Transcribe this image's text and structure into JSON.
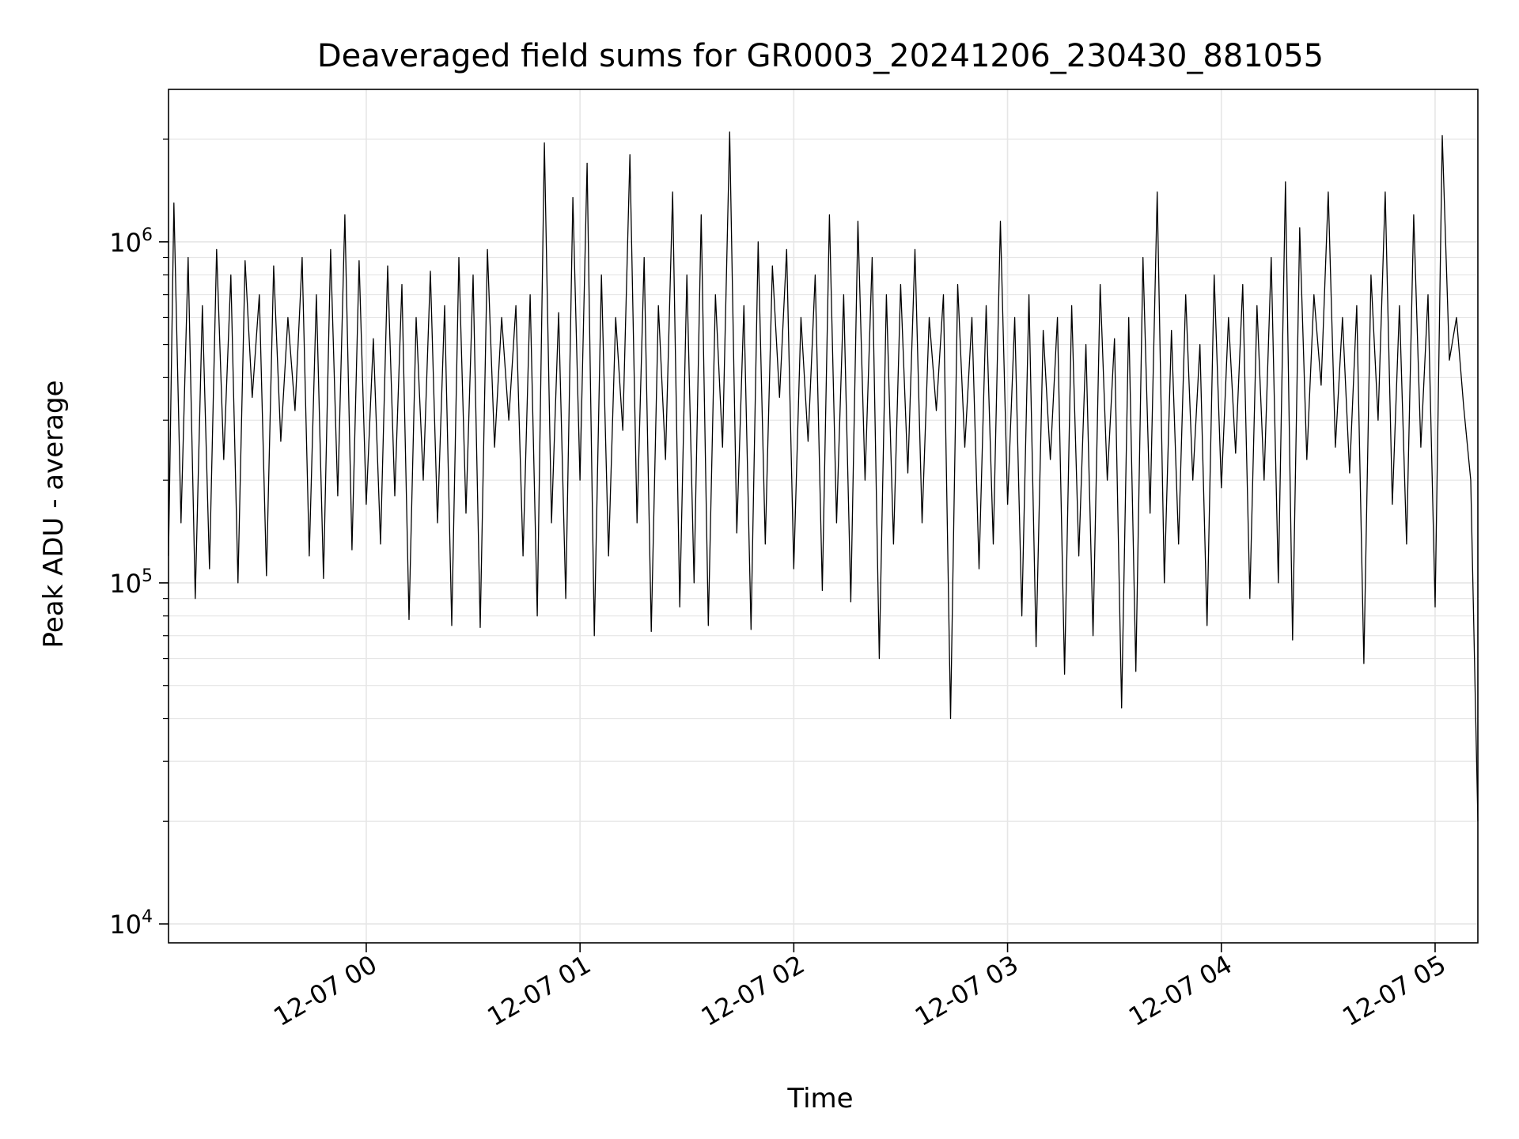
{
  "chart_data": {
    "type": "line",
    "title": "Deaveraged field sums for GR0003_20241206_230430_881055",
    "xlabel": "Time",
    "ylabel": "Peak ADU - average",
    "x_scale": "time",
    "y_scale": "log",
    "xlim": [
      "2024-12-06 23:04:30",
      "2024-12-07 05:12:00"
    ],
    "ylim": [
      8800,
      2800000
    ],
    "x_ticks": [
      {
        "value": "2024-12-07 00:00",
        "label": "12-07 00"
      },
      {
        "value": "2024-12-07 01:00",
        "label": "12-07 01"
      },
      {
        "value": "2024-12-07 02:00",
        "label": "12-07 02"
      },
      {
        "value": "2024-12-07 03:00",
        "label": "12-07 03"
      },
      {
        "value": "2024-12-07 04:00",
        "label": "12-07 04"
      },
      {
        "value": "2024-12-07 05:00",
        "label": "12-07 05"
      }
    ],
    "y_ticks": [
      {
        "value": 10000,
        "base": "10",
        "exp": "4"
      },
      {
        "value": 100000,
        "base": "10",
        "exp": "5"
      },
      {
        "value": 1000000,
        "base": "10",
        "exp": "6"
      }
    ],
    "grid": true,
    "line_color": "#000000",
    "grid_color": "#e6e6e6",
    "series": [
      {
        "x": [
          "2024-12-06 23:04:30",
          "2024-12-06 23:06",
          "2024-12-06 23:08",
          "2024-12-06 23:10",
          "2024-12-06 23:12",
          "2024-12-06 23:14",
          "2024-12-06 23:16",
          "2024-12-06 23:18",
          "2024-12-06 23:20",
          "2024-12-06 23:22",
          "2024-12-06 23:24",
          "2024-12-06 23:26",
          "2024-12-06 23:28",
          "2024-12-06 23:30",
          "2024-12-06 23:32",
          "2024-12-06 23:34",
          "2024-12-06 23:36",
          "2024-12-06 23:38",
          "2024-12-06 23:40",
          "2024-12-06 23:42",
          "2024-12-06 23:44",
          "2024-12-06 23:46",
          "2024-12-06 23:48",
          "2024-12-06 23:50",
          "2024-12-06 23:52",
          "2024-12-06 23:54",
          "2024-12-06 23:56",
          "2024-12-06 23:58",
          "2024-12-07 00:00",
          "2024-12-07 00:02",
          "2024-12-07 00:04",
          "2024-12-07 00:06",
          "2024-12-07 00:08",
          "2024-12-07 00:10",
          "2024-12-07 00:12",
          "2024-12-07 00:14",
          "2024-12-07 00:16",
          "2024-12-07 00:18",
          "2024-12-07 00:20",
          "2024-12-07 00:22",
          "2024-12-07 00:24",
          "2024-12-07 00:26",
          "2024-12-07 00:28",
          "2024-12-07 00:30",
          "2024-12-07 00:32",
          "2024-12-07 00:34",
          "2024-12-07 00:36",
          "2024-12-07 00:38",
          "2024-12-07 00:40",
          "2024-12-07 00:42",
          "2024-12-07 00:44",
          "2024-12-07 00:46",
          "2024-12-07 00:48",
          "2024-12-07 00:50",
          "2024-12-07 00:52",
          "2024-12-07 00:54",
          "2024-12-07 00:56",
          "2024-12-07 00:58",
          "2024-12-07 01:00",
          "2024-12-07 01:02",
          "2024-12-07 01:04",
          "2024-12-07 01:06",
          "2024-12-07 01:08",
          "2024-12-07 01:10",
          "2024-12-07 01:12",
          "2024-12-07 01:14",
          "2024-12-07 01:16",
          "2024-12-07 01:18",
          "2024-12-07 01:20",
          "2024-12-07 01:22",
          "2024-12-07 01:24",
          "2024-12-07 01:26",
          "2024-12-07 01:28",
          "2024-12-07 01:30",
          "2024-12-07 01:32",
          "2024-12-07 01:34",
          "2024-12-07 01:36",
          "2024-12-07 01:38",
          "2024-12-07 01:40",
          "2024-12-07 01:42",
          "2024-12-07 01:44",
          "2024-12-07 01:46",
          "2024-12-07 01:48",
          "2024-12-07 01:50",
          "2024-12-07 01:52",
          "2024-12-07 01:54",
          "2024-12-07 01:56",
          "2024-12-07 01:58",
          "2024-12-07 02:00",
          "2024-12-07 02:02",
          "2024-12-07 02:04",
          "2024-12-07 02:06",
          "2024-12-07 02:08",
          "2024-12-07 02:10",
          "2024-12-07 02:12",
          "2024-12-07 02:14",
          "2024-12-07 02:16",
          "2024-12-07 02:18",
          "2024-12-07 02:20",
          "2024-12-07 02:22",
          "2024-12-07 02:24",
          "2024-12-07 02:26",
          "2024-12-07 02:28",
          "2024-12-07 02:30",
          "2024-12-07 02:32",
          "2024-12-07 02:34",
          "2024-12-07 02:36",
          "2024-12-07 02:38",
          "2024-12-07 02:40",
          "2024-12-07 02:42",
          "2024-12-07 02:44",
          "2024-12-07 02:46",
          "2024-12-07 02:48",
          "2024-12-07 02:50",
          "2024-12-07 02:52",
          "2024-12-07 02:54",
          "2024-12-07 02:56",
          "2024-12-07 02:58",
          "2024-12-07 03:00",
          "2024-12-07 03:02",
          "2024-12-07 03:04",
          "2024-12-07 03:06",
          "2024-12-07 03:08",
          "2024-12-07 03:10",
          "2024-12-07 03:12",
          "2024-12-07 03:14",
          "2024-12-07 03:16",
          "2024-12-07 03:18",
          "2024-12-07 03:20",
          "2024-12-07 03:22",
          "2024-12-07 03:24",
          "2024-12-07 03:26",
          "2024-12-07 03:28",
          "2024-12-07 03:30",
          "2024-12-07 03:32",
          "2024-12-07 03:34",
          "2024-12-07 03:36",
          "2024-12-07 03:38",
          "2024-12-07 03:40",
          "2024-12-07 03:42",
          "2024-12-07 03:44",
          "2024-12-07 03:46",
          "2024-12-07 03:48",
          "2024-12-07 03:50",
          "2024-12-07 03:52",
          "2024-12-07 03:54",
          "2024-12-07 03:56",
          "2024-12-07 03:58",
          "2024-12-07 04:00",
          "2024-12-07 04:02",
          "2024-12-07 04:04",
          "2024-12-07 04:06",
          "2024-12-07 04:08",
          "2024-12-07 04:10",
          "2024-12-07 04:12",
          "2024-12-07 04:14",
          "2024-12-07 04:16",
          "2024-12-07 04:18",
          "2024-12-07 04:20",
          "2024-12-07 04:22",
          "2024-12-07 04:24",
          "2024-12-07 04:26",
          "2024-12-07 04:28",
          "2024-12-07 04:30",
          "2024-12-07 04:32",
          "2024-12-07 04:34",
          "2024-12-07 04:36",
          "2024-12-07 04:38",
          "2024-12-07 04:40",
          "2024-12-07 04:42",
          "2024-12-07 04:44",
          "2024-12-07 04:46",
          "2024-12-07 04:48",
          "2024-12-07 04:50",
          "2024-12-07 04:52",
          "2024-12-07 04:54",
          "2024-12-07 04:56",
          "2024-12-07 04:58",
          "2024-12-07 05:00",
          "2024-12-07 05:02",
          "2024-12-07 05:04",
          "2024-12-07 05:06",
          "2024-12-07 05:08",
          "2024-12-07 05:10",
          "2024-12-07 05:12"
        ],
        "y": [
          120000,
          1300000,
          150000,
          900000,
          90000,
          650000,
          110000,
          950000,
          230000,
          800000,
          100000,
          880000,
          350000,
          700000,
          105000,
          850000,
          260000,
          600000,
          320000,
          900000,
          120000,
          700000,
          103000,
          950000,
          180000,
          1200000,
          125000,
          880000,
          170000,
          520000,
          130000,
          850000,
          180000,
          750000,
          78000,
          600000,
          200000,
          820000,
          150000,
          650000,
          75000,
          900000,
          160000,
          800000,
          74000,
          950000,
          250000,
          600000,
          300000,
          650000,
          120000,
          700000,
          80000,
          1950000,
          150000,
          620000,
          90000,
          1350000,
          200000,
          1700000,
          70000,
          800000,
          120000,
          600000,
          280000,
          1800000,
          150000,
          900000,
          72000,
          650000,
          230000,
          1400000,
          85000,
          800000,
          100000,
          1200000,
          75000,
          700000,
          250000,
          2100000,
          140000,
          650000,
          73000,
          1000000,
          130000,
          850000,
          350000,
          950000,
          110000,
          600000,
          260000,
          800000,
          95000,
          1200000,
          150000,
          700000,
          88000,
          1150000,
          200000,
          900000,
          60000,
          700000,
          130000,
          750000,
          210000,
          950000,
          150000,
          600000,
          320000,
          700000,
          40000,
          750000,
          250000,
          600000,
          110000,
          650000,
          130000,
          1150000,
          170000,
          600000,
          80000,
          700000,
          65000,
          550000,
          230000,
          600000,
          54000,
          650000,
          120000,
          500000,
          70000,
          750000,
          200000,
          520000,
          43000,
          600000,
          55000,
          900000,
          160000,
          1400000,
          100000,
          550000,
          130000,
          700000,
          200000,
          500000,
          75000,
          800000,
          190000,
          600000,
          240000,
          750000,
          90000,
          650000,
          200000,
          900000,
          100000,
          1500000,
          68000,
          1100000,
          230000,
          700000,
          380000,
          1400000,
          250000,
          600000,
          210000,
          650000,
          58000,
          800000,
          300000,
          1400000,
          170000,
          650000,
          130000,
          1200000,
          250000,
          700000,
          85000,
          2050000,
          450000,
          600000,
          330000,
          200000,
          20000
        ]
      }
    ]
  }
}
